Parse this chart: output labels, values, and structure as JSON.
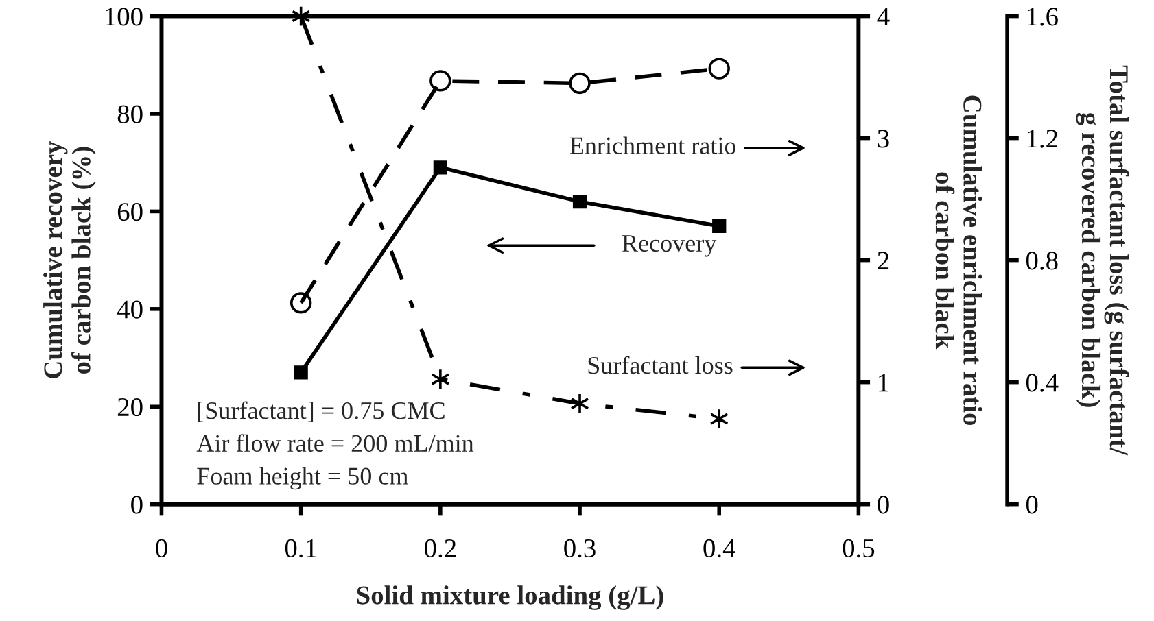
{
  "chart_data": {
    "type": "line",
    "xlabel": "Solid mixture loading (g/L)",
    "ylabel": "Cumulative recovery\nof carbon black (%)",
    "y2label": "Cumulative enrichment ratio\nof carbon black",
    "y3label": "Total surfactant loss (g surfactant/\ng recovered carbon black)",
    "x": [
      0.1,
      0.2,
      0.3,
      0.4
    ],
    "series": [
      {
        "color": "#000000",
        "values": [
          27,
          69,
          62,
          57
        ],
        "marker": "square",
        "line_style": "solid"
      },
      {
        "color": "#000000",
        "values": [
          1.65,
          3.47,
          3.45,
          3.57
        ],
        "axis": "y2",
        "marker": "circle",
        "line_style": "dashed"
      },
      {
        "color": "#000000",
        "values": [
          1.6,
          0.41,
          0.33,
          0.28
        ],
        "axis": "y3",
        "marker": "cross",
        "line_style": "dashdot"
      }
    ],
    "xlim": [
      0,
      0.5
    ],
    "xticks": [
      0,
      0.1,
      0.2,
      0.3,
      0.4,
      0.5
    ],
    "ylim": [
      0,
      100
    ],
    "yticks": [
      0,
      20,
      40,
      60,
      80,
      100
    ],
    "y2lim": [
      0,
      4
    ],
    "y2ticks": [
      0,
      1,
      2,
      3,
      4
    ],
    "y3lim": [
      0,
      1.6
    ],
    "y3ticks": [
      0,
      0.4,
      0.8,
      1.2,
      1.6
    ],
    "annotations": [
      "Enrichment ratio",
      "Recovery",
      "Surfactant loss",
      "[Surfactant] = 0.75 CMC\nAir flow rate = 200 mL/min\nFoam height = 50 cm"
    ],
    "grid": false,
    "legend": false
  }
}
